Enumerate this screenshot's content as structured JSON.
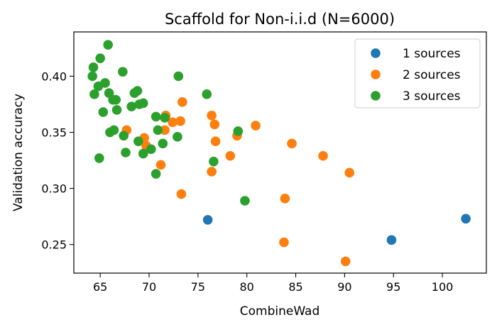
{
  "chart_data": {
    "type": "scatter",
    "title": "Scaffold for Non-i.i.d (N=6000)",
    "xlabel": "CombineWad",
    "ylabel": "Validation accuracy",
    "xlim": [
      62.3,
      104.5
    ],
    "ylim": [
      0.2245,
      0.4395
    ],
    "xticks": [
      65,
      70,
      75,
      80,
      85,
      90,
      95,
      100
    ],
    "yticks": [
      0.25,
      0.3,
      0.35,
      0.4
    ],
    "xtick_labels": [
      "65",
      "70",
      "75",
      "80",
      "85",
      "90",
      "95",
      "100"
    ],
    "ytick_labels": [
      "0.25",
      "0.30",
      "0.35",
      "0.40"
    ],
    "grid": false,
    "legend_position": "top-right",
    "series": [
      {
        "name": "1 sources",
        "color": "#1f77b4",
        "points": [
          [
            76.0,
            0.272
          ],
          [
            94.8,
            0.254
          ],
          [
            102.4,
            0.273
          ]
        ]
      },
      {
        "name": "2 sources",
        "color": "#ff7f0e",
        "points": [
          [
            67.7,
            0.352
          ],
          [
            69.5,
            0.345
          ],
          [
            69.7,
            0.338
          ],
          [
            71.2,
            0.321
          ],
          [
            71.6,
            0.352
          ],
          [
            71.7,
            0.365
          ],
          [
            72.4,
            0.359
          ],
          [
            73.2,
            0.36
          ],
          [
            73.4,
            0.377
          ],
          [
            73.3,
            0.295
          ],
          [
            76.4,
            0.365
          ],
          [
            76.7,
            0.357
          ],
          [
            76.8,
            0.342
          ],
          [
            76.4,
            0.315
          ],
          [
            78.3,
            0.329
          ],
          [
            79.0,
            0.347
          ],
          [
            80.9,
            0.356
          ],
          [
            84.6,
            0.34
          ],
          [
            83.9,
            0.291
          ],
          [
            83.8,
            0.252
          ],
          [
            87.8,
            0.329
          ],
          [
            90.5,
            0.314
          ],
          [
            90.1,
            0.235
          ]
        ]
      },
      {
        "name": "3 sources",
        "color": "#2ca02c",
        "points": [
          [
            65.8,
            0.428
          ],
          [
            65.0,
            0.416
          ],
          [
            64.3,
            0.408
          ],
          [
            64.2,
            0.4
          ],
          [
            64.4,
            0.384
          ],
          [
            64.8,
            0.391
          ],
          [
            65.5,
            0.394
          ],
          [
            65.9,
            0.385
          ],
          [
            66.3,
            0.379
          ],
          [
            66.6,
            0.379
          ],
          [
            66.7,
            0.37
          ],
          [
            65.3,
            0.368
          ],
          [
            66.4,
            0.352
          ],
          [
            66.0,
            0.35
          ],
          [
            67.3,
            0.404
          ],
          [
            67.4,
            0.347
          ],
          [
            67.6,
            0.332
          ],
          [
            64.9,
            0.327
          ],
          [
            68.2,
            0.373
          ],
          [
            68.5,
            0.385
          ],
          [
            68.8,
            0.387
          ],
          [
            69.0,
            0.375
          ],
          [
            69.4,
            0.376
          ],
          [
            68.9,
            0.342
          ],
          [
            69.4,
            0.331
          ],
          [
            70.2,
            0.335
          ],
          [
            70.7,
            0.364
          ],
          [
            70.9,
            0.352
          ],
          [
            71.4,
            0.34
          ],
          [
            71.6,
            0.363
          ],
          [
            70.7,
            0.313
          ],
          [
            72.9,
            0.346
          ],
          [
            73.0,
            0.4
          ],
          [
            75.9,
            0.384
          ],
          [
            76.6,
            0.324
          ],
          [
            79.1,
            0.351
          ],
          [
            79.8,
            0.289
          ]
        ]
      }
    ]
  }
}
